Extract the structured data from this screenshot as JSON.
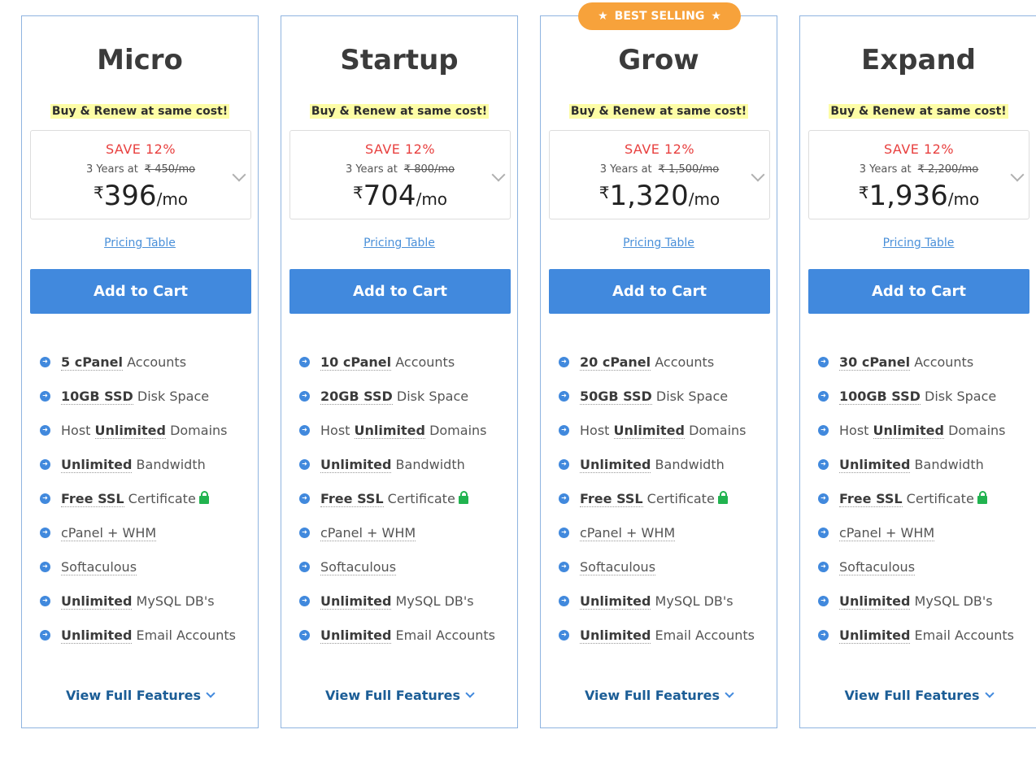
{
  "colors": {
    "accent": "#4189dd",
    "save": "#e8403f",
    "badge": "#f7a23b",
    "promo_bg": "#fdfda6",
    "lock": "#21b34f",
    "link_dark": "#1b5d96"
  },
  "plans": [
    {
      "name": "Micro",
      "promo": "Buy & Renew at same cost!",
      "save": "SAVE 12%",
      "term": "3 Years at",
      "old_price": "₹ 450/mo",
      "currency": "₹",
      "price": "396",
      "per": "/mo",
      "pricing_table": "Pricing Table",
      "cart": "Add to Cart",
      "features": {
        "accounts_n": "5 cPanel",
        "accounts_t": " Accounts",
        "disk_n": "10GB SSD",
        "disk_t": " Disk Space",
        "host_a": "Host ",
        "host_b": "Unlimited",
        "host_c": " Domains",
        "bw_n": "Unlimited",
        "bw_t": " Bandwidth",
        "ssl_n": "Free SSL",
        "ssl_t": " Certificate",
        "whm": "cPanel + WHM",
        "soft": "Softaculous",
        "db_n": "Unlimited",
        "db_t": " MySQL DB's",
        "mail_n": "Unlimited",
        "mail_t": " Email Accounts"
      },
      "full": "View Full Features"
    },
    {
      "name": "Startup",
      "promo": "Buy & Renew at same cost!",
      "save": "SAVE 12%",
      "term": "3 Years at",
      "old_price": "₹ 800/mo",
      "currency": "₹",
      "price": "704",
      "per": "/mo",
      "pricing_table": "Pricing Table",
      "cart": "Add to Cart",
      "features": {
        "accounts_n": "10 cPanel",
        "accounts_t": " Accounts",
        "disk_n": "20GB SSD",
        "disk_t": " Disk Space",
        "host_a": "Host ",
        "host_b": "Unlimited",
        "host_c": " Domains",
        "bw_n": "Unlimited",
        "bw_t": " Bandwidth",
        "ssl_n": "Free SSL",
        "ssl_t": " Certificate",
        "whm": "cPanel + WHM",
        "soft": "Softaculous",
        "db_n": "Unlimited",
        "db_t": " MySQL DB's",
        "mail_n": "Unlimited",
        "mail_t": " Email Accounts"
      },
      "full": "View Full Features"
    },
    {
      "name": "Grow",
      "badge": "BEST SELLING",
      "promo": "Buy & Renew at same cost!",
      "save": "SAVE 12%",
      "term": "3 Years at",
      "old_price": "₹ 1,500/mo",
      "currency": "₹",
      "price": "1,320",
      "per": "/mo",
      "pricing_table": "Pricing Table",
      "cart": "Add to Cart",
      "features": {
        "accounts_n": "20 cPanel",
        "accounts_t": " Accounts",
        "disk_n": "50GB SSD",
        "disk_t": " Disk Space",
        "host_a": "Host ",
        "host_b": "Unlimited",
        "host_c": " Domains",
        "bw_n": "Unlimited",
        "bw_t": " Bandwidth",
        "ssl_n": "Free SSL",
        "ssl_t": " Certificate",
        "whm": "cPanel + WHM",
        "soft": "Softaculous",
        "db_n": "Unlimited",
        "db_t": " MySQL DB's",
        "mail_n": "Unlimited",
        "mail_t": " Email Accounts"
      },
      "full": "View Full Features"
    },
    {
      "name": "Expand",
      "promo": "Buy & Renew at same cost!",
      "save": "SAVE 12%",
      "term": "3 Years at",
      "old_price": "₹ 2,200/mo",
      "currency": "₹",
      "price": "1,936",
      "per": "/mo",
      "pricing_table": "Pricing Table",
      "cart": "Add to Cart",
      "features": {
        "accounts_n": "30 cPanel",
        "accounts_t": " Accounts",
        "disk_n": "100GB SSD",
        "disk_t": " Disk Space",
        "host_a": "Host ",
        "host_b": "Unlimited",
        "host_c": " Domains",
        "bw_n": "Unlimited",
        "bw_t": " Bandwidth",
        "ssl_n": "Free SSL",
        "ssl_t": " Certificate",
        "whm": "cPanel + WHM",
        "soft": "Softaculous",
        "db_n": "Unlimited",
        "db_t": " MySQL DB's",
        "mail_n": "Unlimited",
        "mail_t": " Email Accounts"
      },
      "full": "View Full Features"
    }
  ]
}
